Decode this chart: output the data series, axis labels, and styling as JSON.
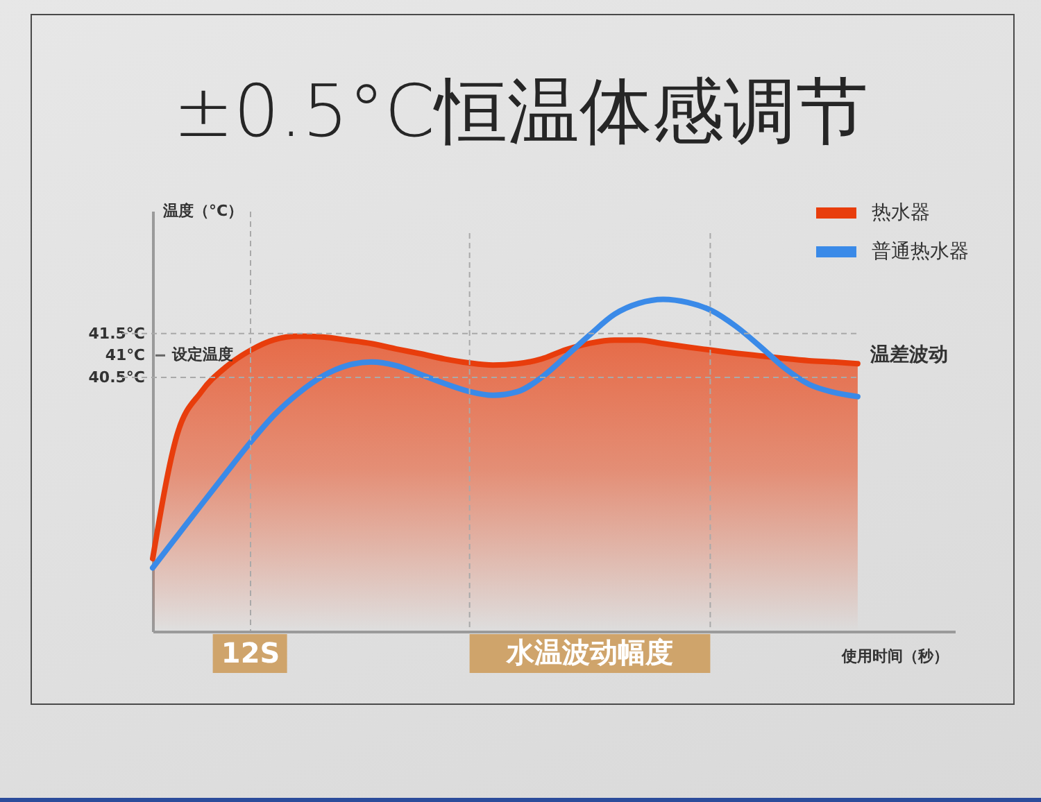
{
  "chart_data": {
    "type": "area",
    "title": "±0.5°C恒温体感调节",
    "xlabel": "使用时间（秒）",
    "ylabel": "温度（°C）",
    "categories": [
      null,
      null,
      null,
      null,
      "12S",
      null,
      null,
      null,
      null,
      null,
      null,
      null,
      null,
      null,
      null,
      null,
      null,
      null,
      null,
      null,
      null,
      null,
      null,
      null,
      null,
      null,
      null,
      null,
      null,
      null,
      null,
      null,
      null,
      null
    ],
    "ylim": [
      34.7,
      44.3
    ],
    "yticks": [
      {
        "value": 40.5,
        "label": "40.5°C"
      },
      {
        "value": 41,
        "label": "41℃"
      },
      {
        "value": 41.5,
        "label": "41.5°C"
      }
    ],
    "grid": "x",
    "legend": "top right",
    "series": [
      {
        "name": "热水器",
        "color": "#e83d0c",
        "values": [
          36.36,
          39.18,
          40.17,
          40.73,
          41.11,
          41.36,
          41.44,
          41.42,
          41.35,
          41.27,
          41.15,
          41.04,
          40.92,
          40.83,
          40.78,
          40.81,
          40.92,
          41.13,
          41.28,
          41.35,
          41.35,
          41.27,
          41.19,
          41.12,
          41.05,
          40.99,
          40.93,
          40.88,
          40.85,
          40.81,
          null,
          null,
          null,
          null
        ]
      },
      {
        "name": "普通热水器",
        "type": "line",
        "color": "#3a8ae8",
        "values": [
          36.15,
          36.87,
          37.59,
          38.3,
          39.0,
          39.64,
          40.14,
          40.53,
          40.77,
          40.85,
          40.77,
          40.57,
          40.36,
          40.18,
          40.09,
          40.17,
          40.5,
          40.98,
          41.48,
          41.94,
          42.19,
          42.28,
          42.21,
          42.02,
          41.66,
          41.2,
          40.71,
          40.34,
          40.16,
          40.06,
          null,
          null,
          null,
          null
        ]
      }
    ],
    "ref_lines": [
      {
        "axis": "y",
        "value": 41.5,
        "line_style": "dashed"
      },
      {
        "axis": "y",
        "value": 40.5,
        "line_style": "dashed"
      }
    ],
    "annotations": [
      "设定温度",
      "温差波动",
      "水温波动幅度"
    ]
  }
}
